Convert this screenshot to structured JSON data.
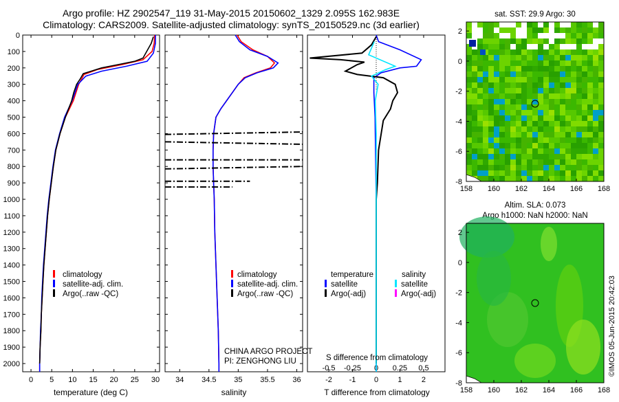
{
  "header": {
    "title_line1": "Argo profile: HZ 2902547_119 31-May-2015 20150602_1329 2.095S 162.983E",
    "title_line2": "Climatology: CARS2009. Satellite-adjusted climatology: synTS_20150529.nc (3d earlier)"
  },
  "colors": {
    "climatology": "#ff0000",
    "satellite": "#0000ff",
    "argo": "#000000",
    "sat_s_diff": "#00e5ff",
    "argo_s_diff": "#ff00ff"
  },
  "chart_data": [
    {
      "type": "line",
      "name": "temperature-profile",
      "xlabel": "temperature (deg C)",
      "ylabel": "",
      "xlim": [
        -2,
        31
      ],
      "ylim": [
        2050,
        0
      ],
      "xticks": [
        0,
        5,
        10,
        15,
        20,
        25,
        30
      ],
      "yticks": [
        0,
        100,
        200,
        300,
        400,
        500,
        600,
        700,
        800,
        900,
        1000,
        1100,
        1200,
        1300,
        1400,
        1500,
        1600,
        1700,
        1800,
        1900,
        2000
      ],
      "legend": [
        "climatology",
        "satellite-adj. clim.",
        "Argo(..raw -QC)"
      ],
      "series": [
        {
          "name": "climatology",
          "points": [
            [
              29.8,
              0
            ],
            [
              29.7,
              50
            ],
            [
              29.2,
              100
            ],
            [
              27.0,
              150
            ],
            [
              22.0,
              180
            ],
            [
              16.0,
              210
            ],
            [
              12.8,
              240
            ],
            [
              11.5,
              300
            ],
            [
              10.2,
              400
            ],
            [
              8.3,
              500
            ],
            [
              7.0,
              600
            ],
            [
              6.0,
              700
            ],
            [
              5.4,
              800
            ],
            [
              4.9,
              900
            ],
            [
              4.4,
              1000
            ],
            [
              4.0,
              1100
            ],
            [
              3.7,
              1200
            ],
            [
              3.4,
              1300
            ],
            [
              3.1,
              1400
            ],
            [
              2.9,
              1500
            ],
            [
              2.7,
              1600
            ],
            [
              2.5,
              1700
            ],
            [
              2.4,
              1800
            ],
            [
              2.2,
              1900
            ],
            [
              2.1,
              2000
            ],
            [
              2.1,
              2050
            ]
          ]
        },
        {
          "name": "satellite-adj. clim.",
          "points": [
            [
              30.0,
              0
            ],
            [
              30.0,
              50
            ],
            [
              29.5,
              110
            ],
            [
              28.0,
              160
            ],
            [
              23.0,
              190
            ],
            [
              17.0,
              220
            ],
            [
              13.2,
              250
            ],
            [
              11.3,
              300
            ],
            [
              9.9,
              400
            ],
            [
              8.1,
              500
            ],
            [
              6.9,
              600
            ],
            [
              5.9,
              700
            ],
            [
              5.3,
              800
            ],
            [
              4.8,
              900
            ],
            [
              4.3,
              1000
            ],
            [
              3.9,
              1100
            ],
            [
              3.6,
              1200
            ],
            [
              3.3,
              1300
            ],
            [
              3.0,
              1400
            ],
            [
              2.8,
              1500
            ],
            [
              2.6,
              1600
            ],
            [
              2.5,
              1700
            ],
            [
              2.3,
              1800
            ],
            [
              2.2,
              1900
            ],
            [
              2.1,
              2000
            ],
            [
              2.1,
              2050
            ]
          ]
        },
        {
          "name": "Argo(..raw -QC)",
          "points": [
            [
              29.5,
              10
            ],
            [
              29.0,
              50
            ],
            [
              27.0,
              140
            ],
            [
              25.0,
              160
            ],
            [
              21.0,
              180
            ],
            [
              17.0,
              200
            ],
            [
              12.6,
              235
            ],
            [
              11.8,
              270
            ],
            [
              11.0,
              300
            ],
            [
              10.3,
              350
            ],
            [
              9.8,
              400
            ],
            [
              8.3,
              500
            ],
            [
              7.0,
              600
            ],
            [
              6.0,
              700
            ],
            [
              5.4,
              800
            ],
            [
              4.9,
              900
            ],
            [
              4.4,
              1000
            ],
            [
              4.0,
              1100
            ],
            [
              3.7,
              1200
            ],
            [
              3.4,
              1300
            ],
            [
              3.1,
              1400
            ],
            [
              2.9,
              1500
            ],
            [
              2.7,
              1600
            ],
            [
              2.5,
              1700
            ],
            [
              2.4,
              1800
            ],
            [
              2.2,
              1900
            ],
            [
              2.1,
              2000
            ]
          ]
        }
      ]
    },
    {
      "type": "line",
      "name": "salinity-profile",
      "xlabel": "salinity",
      "xlim": [
        33.75,
        36.1
      ],
      "ylim": [
        2050,
        0
      ],
      "xticks": [
        34,
        34.5,
        35,
        35.5,
        36
      ],
      "legend": [
        "climatology",
        "satellite-adj. clim.",
        "Argo(..raw -QC)"
      ],
      "footer_lines": [
        "CHINA ARGO PROJECT",
        "PI: ZENGHONG LIU"
      ],
      "series": [
        {
          "name": "climatology",
          "points": [
            [
              34.98,
              0
            ],
            [
              35.05,
              40
            ],
            [
              35.25,
              90
            ],
            [
              35.5,
              130
            ],
            [
              35.62,
              170
            ],
            [
              35.55,
              200
            ],
            [
              35.3,
              230
            ],
            [
              35.1,
              260
            ],
            [
              35.0,
              300
            ],
            [
              34.9,
              350
            ],
            [
              34.8,
              400
            ],
            [
              34.7,
              450
            ],
            [
              34.62,
              500
            ],
            [
              34.58,
              600
            ],
            [
              34.57,
              700
            ],
            [
              34.57,
              800
            ],
            [
              34.58,
              900
            ],
            [
              34.59,
              1000
            ],
            [
              34.6,
              1200
            ],
            [
              34.62,
              1400
            ],
            [
              34.64,
              1600
            ],
            [
              34.66,
              1800
            ],
            [
              34.67,
              2000
            ],
            [
              34.67,
              2050
            ]
          ]
        },
        {
          "name": "satellite-adj. clim.",
          "points": [
            [
              34.95,
              0
            ],
            [
              35.02,
              40
            ],
            [
              35.2,
              90
            ],
            [
              35.5,
              130
            ],
            [
              35.68,
              170
            ],
            [
              35.6,
              200
            ],
            [
              35.32,
              230
            ],
            [
              35.12,
              260
            ],
            [
              35.0,
              300
            ],
            [
              34.9,
              350
            ],
            [
              34.8,
              400
            ],
            [
              34.7,
              450
            ],
            [
              34.62,
              500
            ],
            [
              34.58,
              600
            ],
            [
              34.57,
              700
            ],
            [
              34.57,
              800
            ],
            [
              34.58,
              900
            ],
            [
              34.59,
              1000
            ],
            [
              34.6,
              1200
            ],
            [
              34.62,
              1400
            ],
            [
              34.64,
              1600
            ],
            [
              34.66,
              1800
            ],
            [
              34.67,
              2000
            ],
            [
              34.67,
              2050
            ]
          ]
        }
      ],
      "argo_segments": [
        {
          "depth_start": 605,
          "depth_end": 590,
          "x_start": 33.75,
          "x_end": 36.1
        },
        {
          "depth_start": 650,
          "depth_end": 665,
          "x_start": 33.75,
          "x_end": 36.1
        },
        {
          "depth_start": 760,
          "depth_end": 760,
          "x_start": 33.75,
          "x_end": 36.1
        },
        {
          "depth_start": 815,
          "depth_end": 800,
          "x_start": 33.75,
          "x_end": 36.1
        },
        {
          "depth_start": 890,
          "depth_end": 890,
          "x_start": 33.75,
          "x_end": 35.2
        },
        {
          "depth_start": 925,
          "depth_end": 925,
          "x_start": 33.75,
          "x_end": 34.9
        }
      ]
    },
    {
      "type": "line",
      "name": "difference-from-climatology",
      "xlabel_top": "S difference from climatology",
      "xlabel": "T difference from climatology",
      "xlim_T": [
        -2.9,
        2.9
      ],
      "xticks_T": [
        -2,
        -1,
        0,
        1,
        2
      ],
      "xticks_S": [
        -0.5,
        -0.25,
        0,
        0.25,
        0.5
      ],
      "ylim": [
        2050,
        0
      ],
      "legend_temperature_title": "temperature",
      "legend_salinity_title": "salinity",
      "legend": [
        "satellite",
        "Argo(-adj)",
        "satellite",
        "Argo(-adj)"
      ],
      "series": [
        {
          "name": "T satellite",
          "points": [
            [
              0,
              0
            ],
            [
              0.1,
              40
            ],
            [
              1.0,
              90
            ],
            [
              1.9,
              150
            ],
            [
              1.7,
              190
            ],
            [
              1.0,
              200
            ],
            [
              0.2,
              230
            ],
            [
              -0.1,
              260
            ],
            [
              -0.1,
              350
            ],
            [
              -0.05,
              500
            ],
            [
              0,
              1000
            ],
            [
              0,
              2050
            ]
          ]
        },
        {
          "name": "T Argo(-adj)",
          "points": [
            [
              0,
              10
            ],
            [
              -0.2,
              60
            ],
            [
              -0.6,
              110
            ],
            [
              -2.8,
              140
            ],
            [
              -1.5,
              150
            ],
            [
              -0.5,
              165
            ],
            [
              -0.8,
              180
            ],
            [
              -1.3,
              220
            ],
            [
              -0.8,
              240
            ],
            [
              0.3,
              260
            ],
            [
              0.8,
              300
            ],
            [
              0.9,
              350
            ],
            [
              0.7,
              400
            ],
            [
              0.6,
              450
            ],
            [
              0.3,
              520
            ],
            [
              0.1,
              700
            ],
            [
              0.05,
              900
            ],
            [
              0,
              1000
            ],
            [
              0,
              2000
            ]
          ]
        },
        {
          "name": "S satellite",
          "points": [
            [
              -0.02,
              40
            ],
            [
              -0.08,
              120
            ],
            [
              0.2,
              190
            ],
            [
              0.1,
              210
            ],
            [
              -0.05,
              250
            ],
            [
              0.02,
              300
            ],
            [
              -0.01,
              400
            ],
            [
              0,
              600
            ],
            [
              0,
              1000
            ],
            [
              0,
              2050
            ]
          ]
        },
        {
          "name": "S Argo(-adj)",
          "points": []
        }
      ]
    }
  ],
  "maps": {
    "top": {
      "title": "sat. SST: 29.9 Argo: 30",
      "xticks": [
        158,
        160,
        162,
        164,
        166,
        168
      ],
      "yticks": [
        2,
        0,
        -2,
        -4,
        -6,
        -8
      ],
      "argo_lon": 162.983,
      "argo_lat": -2.095
    },
    "bottom": {
      "title_line1": "Altim. SLA: 0.073",
      "title_line2": "Argo h1000: NaN h2000: NaN",
      "xticks": [
        158,
        160,
        162,
        164,
        166,
        168
      ],
      "yticks": [
        2,
        0,
        -2,
        -4,
        -6,
        -8
      ],
      "argo_lon": 162.983,
      "argo_lat": -2.095
    }
  },
  "watermark": "©IMOS 05-Jun-2015 20:42:03"
}
